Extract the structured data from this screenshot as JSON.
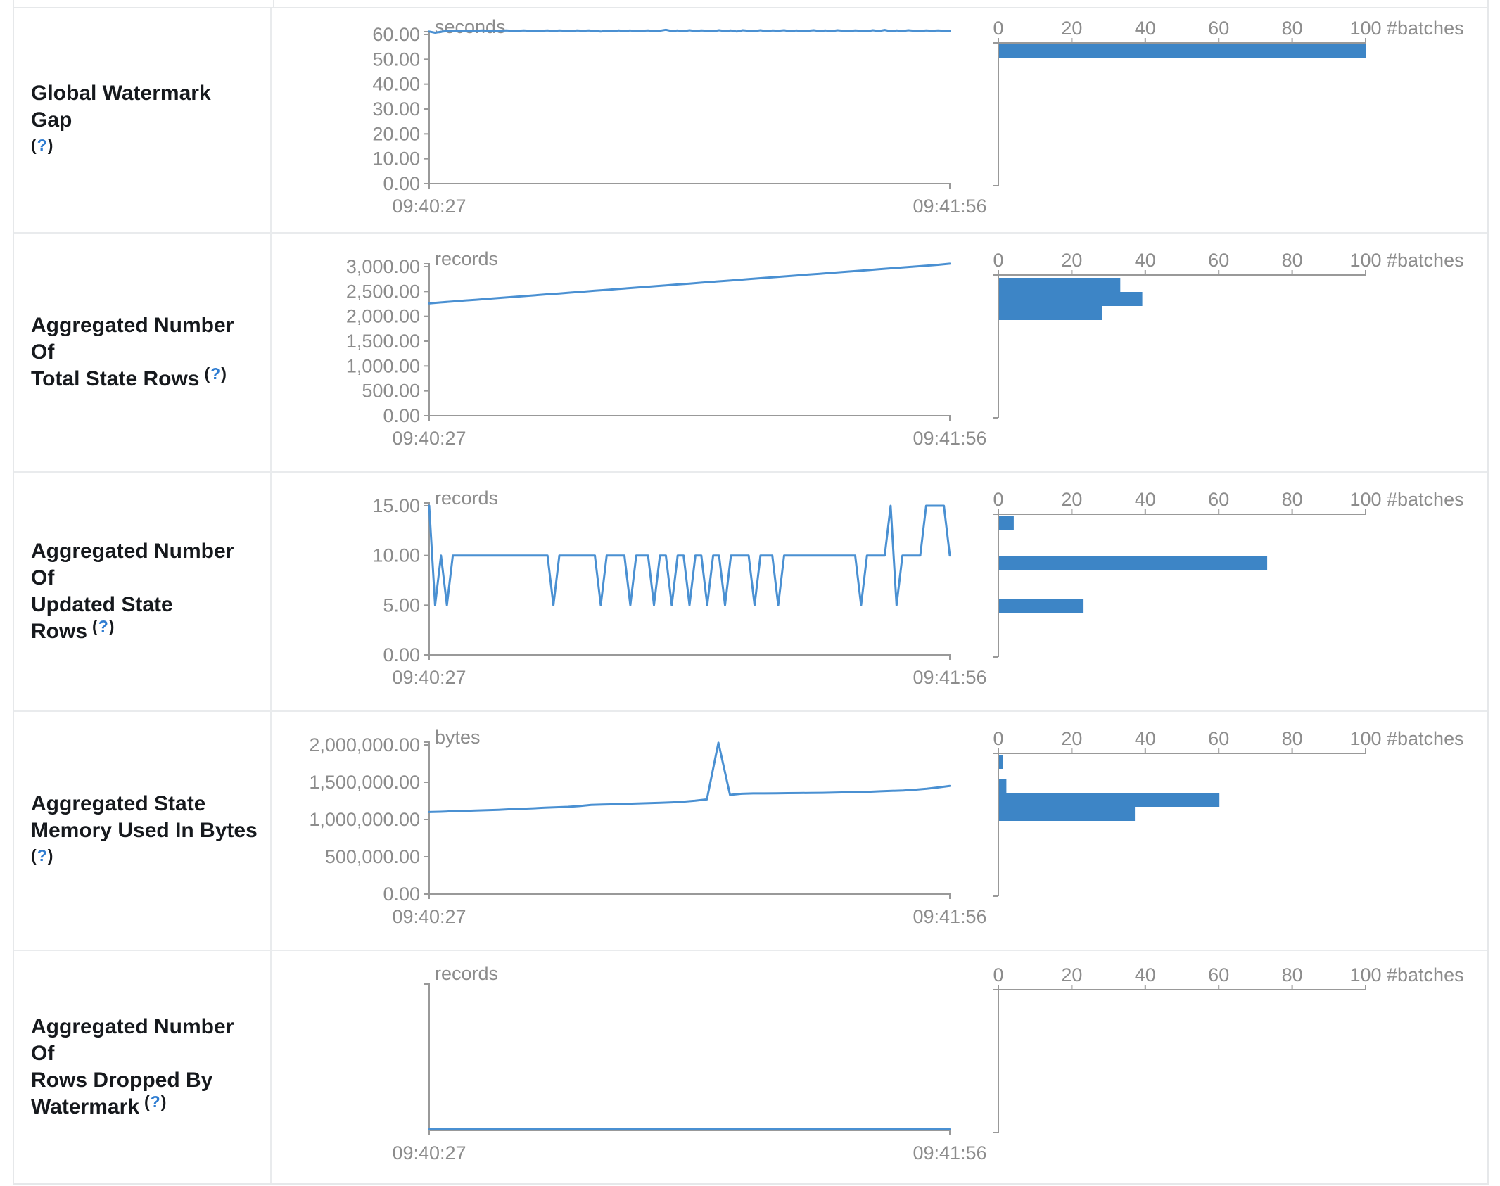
{
  "theme": {
    "accent_blue": "#3d85c6",
    "line_blue": "#4a90d2",
    "axis_gray": "#999999",
    "tick_text_gray": "#8c8c8c",
    "label_dark": "#16191d",
    "border_gray": "#e6e8ea",
    "help_blue": "#2e7cd1"
  },
  "help": {
    "open": "(",
    "mark": "?",
    "close": ")"
  },
  "time_axis": {
    "start": "09:40:27",
    "end": "09:41:56"
  },
  "hist_axis": {
    "ticks": [
      "0",
      "20",
      "40",
      "60",
      "80",
      "100"
    ],
    "label": "#batches",
    "max": 100
  },
  "rows": [
    {
      "label_lines": [
        "Global Watermark Gap"
      ],
      "help_inline": false,
      "chart_data": {
        "type": "line",
        "timeline": {
          "unit": "seconds",
          "y_ticks": [
            "0.00",
            "10.00",
            "20.00",
            "30.00",
            "40.00",
            "50.00",
            "60.00"
          ],
          "y_max": 60,
          "x_start": "09:40:27",
          "x_end": "09:41:56",
          "values": [
            61.2,
            60.7,
            61.1,
            61.4,
            61.3,
            61.4,
            61.5,
            61.4,
            61.5,
            61.6,
            61.5,
            61.4,
            61.5,
            61.6,
            61.5,
            61.5,
            61.6,
            61.5,
            61.4,
            61.5,
            61.6,
            61.4,
            61.6,
            61.5,
            61.4,
            61.6,
            61.5,
            61.6,
            61.4,
            61.2,
            61.5,
            61.3,
            61.6,
            61.4,
            61.6,
            61.3,
            61.5,
            61.6,
            61.4,
            61.5,
            61.9,
            61.4,
            61.6,
            61.3,
            61.7,
            61.4,
            61.6,
            61.5,
            61.3,
            61.7,
            61.4,
            61.6,
            61.2,
            61.7,
            61.5,
            61.4,
            61.7,
            61.3,
            61.6,
            61.5,
            61.7,
            61.3,
            61.6,
            61.4,
            61.5,
            61.7,
            61.4,
            61.6,
            61.3,
            61.7,
            61.5,
            61.4,
            61.6,
            61.5,
            61.3,
            61.7,
            61.4,
            61.8,
            61.3,
            61.6,
            61.4,
            61.7,
            61.5,
            61.4,
            61.6,
            61.5,
            61.6,
            61.5,
            61.5
          ]
        },
        "histogram": {
          "unit": "#batches",
          "bars": [
            {
              "count": 100,
              "y": 42
            }
          ]
        }
      }
    },
    {
      "label_lines": [
        "Aggregated Number Of",
        "Total State Rows"
      ],
      "help_inline": true,
      "chart_data": {
        "type": "line",
        "timeline": {
          "unit": "records",
          "y_ticks": [
            "0.00",
            "500.00",
            "1,000.00",
            "1,500.00",
            "2,000.00",
            "2,500.00",
            "3,000.00"
          ],
          "y_max": 3000,
          "x_start": "09:40:27",
          "x_end": "09:41:56",
          "values": [
            2262,
            2280,
            2298,
            2316,
            2334,
            2352,
            2370,
            2388,
            2406,
            2424,
            2442,
            2460,
            2478,
            2496,
            2514,
            2532,
            2550,
            2568,
            2586,
            2604,
            2622,
            2640,
            2658,
            2676,
            2694,
            2712,
            2730,
            2748,
            2766,
            2784,
            2802,
            2820,
            2838,
            2856,
            2874,
            2892,
            2910,
            2928,
            2946,
            2964,
            2982,
            3000,
            3018,
            3036,
            3058
          ]
        },
        "histogram": {
          "unit": "#batches",
          "bars": [
            {
              "count": 33,
              "y": 44
            },
            {
              "count": 39,
              "y": 64
            },
            {
              "count": 28,
              "y": 84
            }
          ]
        }
      }
    },
    {
      "label_lines": [
        "Aggregated Number Of",
        "Updated State Rows"
      ],
      "help_inline": true,
      "chart_data": {
        "type": "line",
        "timeline": {
          "unit": "records",
          "y_ticks": [
            "0.00",
            "5.00",
            "10.00",
            "15.00"
          ],
          "y_max": 15,
          "x_start": "09:40:27",
          "x_end": "09:41:56",
          "values": [
            15,
            5,
            10,
            5,
            10,
            10,
            10,
            10,
            10,
            10,
            10,
            10,
            10,
            10,
            10,
            10,
            10,
            10,
            10,
            10,
            10,
            5,
            10,
            10,
            10,
            10,
            10,
            10,
            10,
            5,
            10,
            10,
            10,
            10,
            5,
            10,
            10,
            10,
            5,
            10,
            10,
            5,
            10,
            10,
            5,
            10,
            10,
            5,
            10,
            10,
            5,
            10,
            10,
            10,
            10,
            5,
            10,
            10,
            10,
            5,
            10,
            10,
            10,
            10,
            10,
            10,
            10,
            10,
            10,
            10,
            10,
            10,
            10,
            5,
            10,
            10,
            10,
            10,
            15,
            5,
            10,
            10,
            10,
            10,
            15,
            15,
            15,
            15,
            10
          ]
        },
        "histogram": {
          "unit": "#batches",
          "bars": [
            {
              "count": 4,
              "y": 42
            },
            {
              "count": 73,
              "y": 100
            },
            {
              "count": 23,
              "y": 160
            }
          ]
        }
      }
    },
    {
      "label_lines": [
        "Aggregated State",
        "Memory Used In Bytes"
      ],
      "help_inline": false,
      "chart_data": {
        "type": "line",
        "timeline": {
          "unit": "bytes",
          "y_ticks": [
            "0.00",
            "500,000.00",
            "1,000,000.00",
            "1,500,000.00",
            "2,000,000.00"
          ],
          "y_max": 2000000,
          "x_start": "09:40:27",
          "x_end": "09:41:56",
          "values": [
            1100000,
            1104000,
            1110000,
            1114000,
            1120000,
            1125000,
            1130000,
            1138000,
            1144000,
            1150000,
            1158000,
            1164000,
            1170000,
            1180000,
            1196000,
            1200000,
            1204000,
            1210000,
            1214000,
            1220000,
            1224000,
            1230000,
            1240000,
            1252000,
            1270000,
            2030000,
            1330000,
            1345000,
            1350000,
            1350000,
            1352000,
            1354000,
            1355000,
            1357000,
            1358000,
            1360000,
            1364000,
            1368000,
            1372000,
            1378000,
            1384000,
            1390000,
            1400000,
            1412000,
            1430000,
            1450000
          ]
        },
        "histogram": {
          "unit": "#batches",
          "bars": [
            {
              "count": 1,
              "y": 42
            },
            {
              "count": 2,
              "y": 76
            },
            {
              "count": 60,
              "y": 96
            },
            {
              "count": 37,
              "y": 116
            }
          ]
        }
      }
    },
    {
      "label_lines": [
        "Aggregated Number Of",
        "Rows Dropped By",
        "Watermark"
      ],
      "help_inline": true,
      "chart_data": {
        "type": "line",
        "timeline": {
          "unit": "records",
          "y_ticks": [],
          "y_max": 1,
          "x_start": "09:40:27",
          "x_end": "09:41:56",
          "values": [
            0,
            0
          ]
        },
        "histogram": {
          "unit": "#batches",
          "bars": []
        }
      }
    }
  ]
}
